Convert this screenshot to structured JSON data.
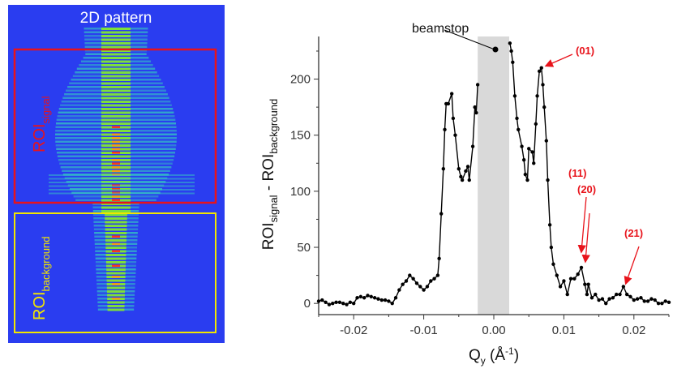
{
  "left_panel": {
    "title": "2D pattern",
    "roi_signal": {
      "main": "ROI",
      "sub": "signal",
      "color": "#e8131b"
    },
    "roi_background": {
      "main": "ROI",
      "sub": "background",
      "color": "#f2e600"
    },
    "background_color": "#2a3df0"
  },
  "chart_data": {
    "type": "line",
    "xlabel": {
      "main": "Q",
      "sub": "y",
      "unit": " (Å",
      "sup": "-1",
      "close": ")"
    },
    "ylabel": {
      "a": "ROI",
      "a_sub": "signal",
      "mid": " - ROI",
      "b_sub": "background"
    },
    "xlim": [
      -0.025,
      0.025
    ],
    "ylim": [
      -10,
      238
    ],
    "xticks": [
      "-0.02",
      "-0.01",
      "0.00",
      "0.01",
      "0.02"
    ],
    "xtick_values": [
      -0.02,
      -0.01,
      0,
      0.01,
      0.02
    ],
    "yticks": [
      "0",
      "50",
      "100",
      "150",
      "200"
    ],
    "ytick_values": [
      0,
      50,
      100,
      150,
      200
    ],
    "grid": false,
    "beamstop_region": [
      -0.0023,
      0.0022
    ],
    "series": [
      {
        "color": "#000000",
        "segments": [
          {
            "x": [
              -0.025,
              -0.0245,
              -0.024,
              -0.0235,
              -0.023,
              -0.0225,
              -0.022,
              -0.0215,
              -0.021,
              -0.0205,
              -0.02,
              -0.0195,
              -0.019,
              -0.0185,
              -0.018,
              -0.0175,
              -0.017,
              -0.0165,
              -0.016,
              -0.0155,
              -0.015,
              -0.0145,
              -0.014,
              -0.0135,
              -0.013,
              -0.0125,
              -0.012,
              -0.0115,
              -0.011,
              -0.0105,
              -0.01,
              -0.0095,
              -0.009,
              -0.0085,
              -0.008,
              -0.0078,
              -0.0075,
              -0.0072,
              -0.007,
              -0.0068,
              -0.0065,
              -0.006,
              -0.0058,
              -0.0055,
              -0.005,
              -0.0047,
              -0.0045,
              -0.004,
              -0.0037,
              -0.0035,
              -0.003,
              -0.0027,
              -0.0025,
              -0.0023
            ],
            "y": [
              2,
              3,
              1,
              -1,
              0,
              1,
              1,
              0,
              -1,
              1,
              0,
              5,
              6,
              5,
              7,
              6,
              5,
              4,
              3,
              3,
              2,
              0,
              5,
              12,
              17,
              20,
              25,
              22,
              18,
              15,
              12,
              15,
              20,
              22,
              25,
              40,
              80,
              120,
              155,
              178,
              178,
              187,
              165,
              150,
              120,
              113,
              110,
              118,
              122,
              110,
              140,
              175,
              170,
              195
            ]
          },
          {
            "x": [
              0.0023,
              0.0025,
              0.0027,
              0.003,
              0.0033,
              0.0035,
              0.004,
              0.0043,
              0.0045,
              0.0048,
              0.005,
              0.0055,
              0.0057,
              0.006,
              0.0062,
              0.0065,
              0.0068,
              0.007,
              0.0072,
              0.0075,
              0.0077,
              0.008,
              0.0082,
              0.0085,
              0.009,
              0.0095,
              0.01,
              0.0105,
              0.011,
              0.0115,
              0.012,
              0.0125,
              0.013,
              0.0133,
              0.0135,
              0.014,
              0.0145,
              0.015,
              0.0155,
              0.016,
              0.0165,
              0.017,
              0.0175,
              0.018,
              0.0185,
              0.019,
              0.0195,
              0.02,
              0.0205,
              0.021,
              0.0215,
              0.022,
              0.0225,
              0.023,
              0.0235,
              0.024,
              0.0245,
              0.025
            ],
            "y": [
              232,
              225,
              215,
              185,
              165,
              155,
              140,
              128,
              115,
              110,
              138,
              135,
              125,
              160,
              185,
              207,
              210,
              195,
              175,
              145,
              110,
              70,
              50,
              35,
              25,
              15,
              20,
              8,
              22,
              22,
              26,
              32,
              17,
              8,
              17,
              5,
              8,
              3,
              4,
              0,
              4,
              5,
              8,
              8,
              15,
              8,
              6,
              3,
              4,
              5,
              2,
              2,
              4,
              3,
              0,
              0,
              2,
              1
            ]
          }
        ]
      }
    ],
    "annotations": [
      {
        "text": "beamstop",
        "color": "#000000"
      },
      {
        "text": "(01)",
        "color": "#e8131b"
      },
      {
        "text": "(11)",
        "color": "#e8131b"
      },
      {
        "text": "(20)",
        "color": "#e8131b"
      },
      {
        "text": "(21)",
        "color": "#e8131b"
      }
    ]
  }
}
